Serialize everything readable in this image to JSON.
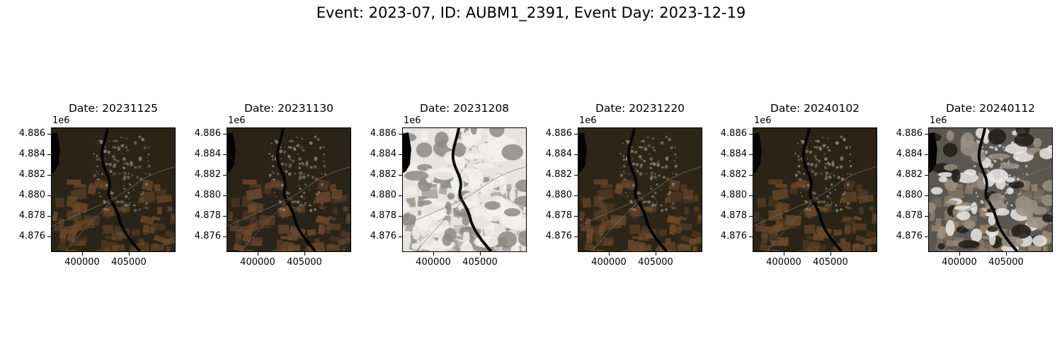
{
  "title": "Event: 2023-07, ID: AUBM1_2391, Event Day: 2023-12-19",
  "y_offset_label": "1e6",
  "y_ticks": [
    "4.886",
    "4.884",
    "4.882",
    "4.880",
    "4.878",
    "4.876"
  ],
  "x_ticks": [
    "400000",
    "405000"
  ],
  "panels": [
    {
      "label": "Date: 20231125",
      "scene": "dark",
      "palette": {
        "base": "#2b2416",
        "field": "#6b4a2c",
        "urban": "#8a8078",
        "river": "#050505"
      }
    },
    {
      "label": "Date: 20231130",
      "scene": "dark",
      "palette": {
        "base": "#2a2318",
        "field": "#6e4c2f",
        "urban": "#8d847c",
        "river": "#050505"
      }
    },
    {
      "label": "Date: 20231208",
      "scene": "snow",
      "palette": {
        "base": "#e6e4e2",
        "field": "#8c8880",
        "urban": "#b8aea8",
        "river": "#0a0a0a"
      }
    },
    {
      "label": "Date: 20231220",
      "scene": "dark",
      "palette": {
        "base": "#2d2617",
        "field": "#704d2e",
        "urban": "#8f857c",
        "river": "#050505"
      }
    },
    {
      "label": "Date: 20240102",
      "scene": "dark",
      "palette": {
        "base": "#2b2416",
        "field": "#6c4b2d",
        "urban": "#8b827a",
        "river": "#050505"
      }
    },
    {
      "label": "Date: 20240112",
      "scene": "cloud",
      "palette": {
        "base": "#5a5650",
        "field": "#a08a70",
        "urban": "#d8d4d0",
        "river": "#0a0a0a"
      }
    }
  ]
}
